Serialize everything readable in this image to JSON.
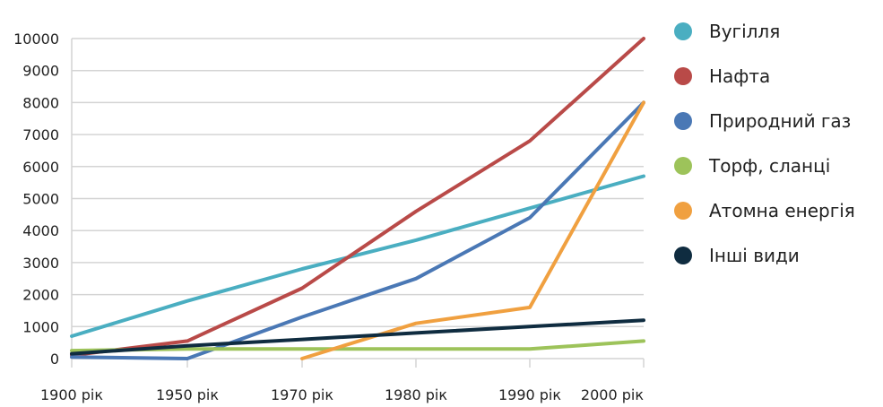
{
  "chart_data": {
    "type": "line",
    "categories": [
      "1900 рік",
      "1950 рік",
      "1970 рік",
      "1980 рік",
      "1990 рік",
      "2000 рік"
    ],
    "ylim": [
      0,
      10000
    ],
    "yticks": [
      0,
      1000,
      2000,
      3000,
      4000,
      5000,
      6000,
      7000,
      8000,
      9000,
      10000
    ],
    "grid": true,
    "legend_position": "right",
    "series": [
      {
        "name": "Вугілля",
        "color": "#4aaec1",
        "values": [
          700,
          1800,
          2800,
          3700,
          4700,
          5700
        ]
      },
      {
        "name": "Нафта",
        "color": "#b94a48",
        "values": [
          100,
          550,
          2200,
          4600,
          6800,
          10000
        ]
      },
      {
        "name": "Природний газ",
        "color": "#4a78b5",
        "values": [
          50,
          0,
          1300,
          2500,
          4400,
          8000
        ]
      },
      {
        "name": "Торф, сланці",
        "color": "#9dc35a",
        "values": [
          250,
          300,
          300,
          300,
          300,
          550
        ]
      },
      {
        "name": "Атомна енергія",
        "color": "#f0a040",
        "values": [
          null,
          null,
          0,
          1100,
          1600,
          8000
        ]
      },
      {
        "name": "Інші види",
        "color": "#0f2c40",
        "values": [
          150,
          400,
          600,
          800,
          1000,
          1200
        ]
      }
    ]
  }
}
